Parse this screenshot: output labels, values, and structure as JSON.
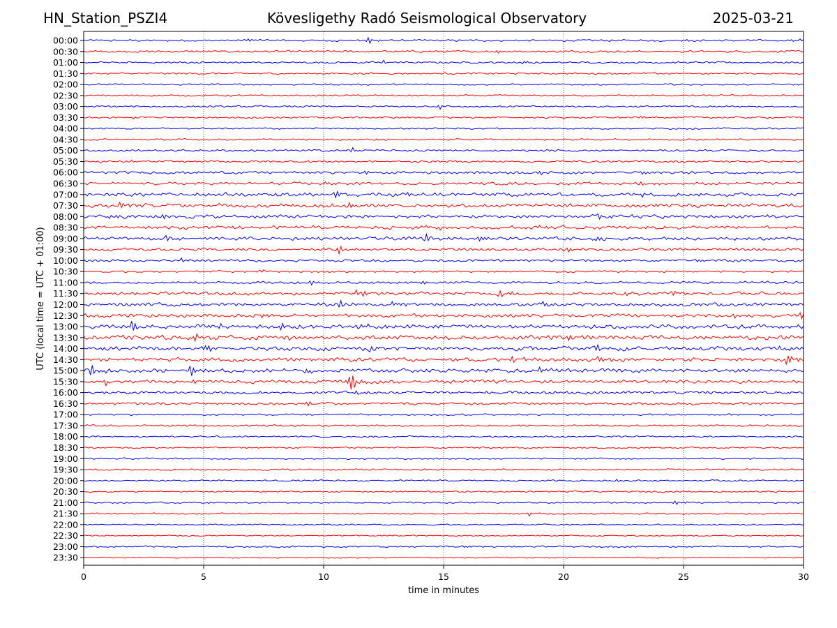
{
  "header": {
    "station": "HN_Station_PSZI4",
    "observatory": "Kövesligethy Radó Seismological Observatory",
    "date": "2025-03-21"
  },
  "chart_data": {
    "type": "line",
    "title": "Kövesligethy Radó Seismological Observatory",
    "xlabel": "time in minutes",
    "ylabel": "UTC (local time = UTC + 01:00)",
    "xlim": [
      0,
      30
    ],
    "xticks": [
      0,
      5,
      10,
      15,
      20,
      25,
      30
    ],
    "grid": "vertical dotted",
    "colors": {
      "even_rows": "#0000ff",
      "odd_rows": "#ff0000",
      "axes": "#000000",
      "grid": "#000000"
    },
    "rows": [
      {
        "label": "00:00",
        "activity": 0.25,
        "events": [
          {
            "t": 11.9,
            "amp": 0.7
          },
          {
            "t": 6.9,
            "amp": 0.4
          },
          {
            "t": 24.9,
            "amp": 0.4
          },
          {
            "t": 29.6,
            "amp": 0.5
          }
        ]
      },
      {
        "label": "00:30",
        "activity": 0.25,
        "events": [
          {
            "t": 17.3,
            "amp": 0.4
          }
        ]
      },
      {
        "label": "01:00",
        "activity": 0.22,
        "events": [
          {
            "t": 12.5,
            "amp": 0.35
          },
          {
            "t": 18.3,
            "amp": 0.35
          }
        ]
      },
      {
        "label": "01:30",
        "activity": 0.22,
        "events": []
      },
      {
        "label": "02:00",
        "activity": 0.2,
        "events": []
      },
      {
        "label": "02:30",
        "activity": 0.2,
        "events": []
      },
      {
        "label": "03:00",
        "activity": 0.22,
        "events": [
          {
            "t": 14.8,
            "amp": 0.5
          },
          {
            "t": 26.0,
            "amp": 0.3
          }
        ]
      },
      {
        "label": "03:30",
        "activity": 0.22,
        "events": [
          {
            "t": 1.8,
            "amp": 0.4
          },
          {
            "t": 23.2,
            "amp": 0.3
          }
        ]
      },
      {
        "label": "04:00",
        "activity": 0.2,
        "events": []
      },
      {
        "label": "04:30",
        "activity": 0.2,
        "events": [
          {
            "t": 12.2,
            "amp": 0.35
          }
        ]
      },
      {
        "label": "05:00",
        "activity": 0.25,
        "events": [
          {
            "t": 11.2,
            "amp": 0.45
          }
        ]
      },
      {
        "label": "05:30",
        "activity": 0.25,
        "events": [
          {
            "t": 2.0,
            "amp": 0.3
          }
        ]
      },
      {
        "label": "06:00",
        "activity": 0.32,
        "events": [
          {
            "t": 11.7,
            "amp": 0.45
          },
          {
            "t": 18.8,
            "amp": 0.5
          },
          {
            "t": 23.3,
            "amp": 0.45
          }
        ]
      },
      {
        "label": "06:30",
        "activity": 0.32,
        "events": [
          {
            "t": 10.1,
            "amp": 0.5
          },
          {
            "t": 23.0,
            "amp": 0.5
          }
        ]
      },
      {
        "label": "07:00",
        "activity": 0.45,
        "events": [
          {
            "t": 7.9,
            "amp": 0.7
          },
          {
            "t": 10.5,
            "amp": 0.8
          },
          {
            "t": 13.3,
            "amp": 0.6
          },
          {
            "t": 23.1,
            "amp": 0.6
          }
        ]
      },
      {
        "label": "07:30",
        "activity": 0.45,
        "events": [
          {
            "t": 1.5,
            "amp": 0.7
          },
          {
            "t": 11.1,
            "amp": 0.7
          },
          {
            "t": 23.7,
            "amp": 0.7
          }
        ]
      },
      {
        "label": "08:00",
        "activity": 0.42,
        "events": [
          {
            "t": 1.1,
            "amp": 0.8
          },
          {
            "t": 3.3,
            "amp": 0.6
          },
          {
            "t": 21.5,
            "amp": 0.55
          }
        ]
      },
      {
        "label": "08:30",
        "activity": 0.4,
        "events": [
          {
            "t": 6.0,
            "amp": 0.55
          },
          {
            "t": 14.5,
            "amp": 0.55
          },
          {
            "t": 18.9,
            "amp": 0.5
          }
        ]
      },
      {
        "label": "09:00",
        "activity": 0.4,
        "events": [
          {
            "t": 1.1,
            "amp": 0.7
          },
          {
            "t": 3.5,
            "amp": 0.65
          },
          {
            "t": 14.3,
            "amp": 0.75
          },
          {
            "t": 16.4,
            "amp": 0.85
          },
          {
            "t": 21.3,
            "amp": 0.55
          }
        ]
      },
      {
        "label": "09:30",
        "activity": 0.35,
        "events": [
          {
            "t": 10.6,
            "amp": 0.9
          },
          {
            "t": 20.2,
            "amp": 0.45
          }
        ]
      },
      {
        "label": "10:00",
        "activity": 0.3,
        "events": [
          {
            "t": 4.1,
            "amp": 0.55
          },
          {
            "t": 25.5,
            "amp": 0.5
          }
        ]
      },
      {
        "label": "10:30",
        "activity": 0.25,
        "events": [
          {
            "t": 7.2,
            "amp": 0.45
          }
        ]
      },
      {
        "label": "11:00",
        "activity": 0.3,
        "events": [
          {
            "t": 9.5,
            "amp": 0.5
          },
          {
            "t": 14.1,
            "amp": 0.5
          }
        ]
      },
      {
        "label": "11:30",
        "activity": 0.38,
        "events": [
          {
            "t": 11.4,
            "amp": 1.5
          },
          {
            "t": 17.4,
            "amp": 0.8
          },
          {
            "t": 22.6,
            "amp": 0.6
          },
          {
            "t": 24.6,
            "amp": 0.55
          }
        ]
      },
      {
        "label": "12:00",
        "activity": 0.42,
        "events": [
          {
            "t": 10.7,
            "amp": 0.7
          },
          {
            "t": 12.9,
            "amp": 0.6
          },
          {
            "t": 19.2,
            "amp": 0.8
          }
        ]
      },
      {
        "label": "12:30",
        "activity": 0.42,
        "events": [
          {
            "t": 7.4,
            "amp": 0.6
          },
          {
            "t": 27.1,
            "amp": 0.7
          },
          {
            "t": 29.8,
            "amp": 0.8
          }
        ]
      },
      {
        "label": "13:00",
        "activity": 0.5,
        "events": [
          {
            "t": 2.0,
            "amp": 1.1
          },
          {
            "t": 5.4,
            "amp": 1.0
          },
          {
            "t": 8.2,
            "amp": 0.9
          },
          {
            "t": 11.5,
            "amp": 1.0
          }
        ]
      },
      {
        "label": "13:30",
        "activity": 0.5,
        "events": [
          {
            "t": 4.6,
            "amp": 0.8
          },
          {
            "t": 8.4,
            "amp": 0.8
          },
          {
            "t": 20.0,
            "amp": 1.0
          }
        ]
      },
      {
        "label": "14:00",
        "activity": 0.48,
        "events": [
          {
            "t": 0.6,
            "amp": 0.6
          },
          {
            "t": 5.1,
            "amp": 0.8
          },
          {
            "t": 12.0,
            "amp": 0.9
          },
          {
            "t": 21.3,
            "amp": 0.9
          },
          {
            "t": 29.1,
            "amp": 0.6
          }
        ]
      },
      {
        "label": "14:30",
        "activity": 0.45,
        "events": [
          {
            "t": 17.8,
            "amp": 0.6
          },
          {
            "t": 21.5,
            "amp": 0.6
          },
          {
            "t": 29.3,
            "amp": 1.2
          }
        ]
      },
      {
        "label": "15:00",
        "activity": 0.45,
        "events": [
          {
            "t": 0.3,
            "amp": 1.2
          },
          {
            "t": 4.4,
            "amp": 1.1
          },
          {
            "t": 9.2,
            "amp": 0.9
          },
          {
            "t": 19.0,
            "amp": 0.55
          }
        ]
      },
      {
        "label": "15:30",
        "activity": 0.42,
        "events": [
          {
            "t": 0.8,
            "amp": 0.7
          },
          {
            "t": 4.7,
            "amp": 0.6
          },
          {
            "t": 11.1,
            "amp": 2.6
          }
        ]
      },
      {
        "label": "16:00",
        "activity": 0.35,
        "events": [
          {
            "t": 11.4,
            "amp": 0.65
          },
          {
            "t": 29.0,
            "amp": 0.5
          }
        ]
      },
      {
        "label": "16:30",
        "activity": 0.3,
        "events": [
          {
            "t": 9.2,
            "amp": 0.5
          }
        ]
      },
      {
        "label": "17:00",
        "activity": 0.22,
        "events": []
      },
      {
        "label": "17:30",
        "activity": 0.22,
        "events": []
      },
      {
        "label": "18:00",
        "activity": 0.2,
        "events": []
      },
      {
        "label": "18:30",
        "activity": 0.2,
        "events": []
      },
      {
        "label": "19:00",
        "activity": 0.2,
        "events": []
      },
      {
        "label": "19:30",
        "activity": 0.2,
        "events": []
      },
      {
        "label": "20:00",
        "activity": 0.18,
        "events": [
          {
            "t": 22.2,
            "amp": 0.3
          }
        ]
      },
      {
        "label": "20:30",
        "activity": 0.18,
        "events": []
      },
      {
        "label": "21:00",
        "activity": 0.18,
        "events": [
          {
            "t": 24.7,
            "amp": 0.55
          }
        ]
      },
      {
        "label": "21:30",
        "activity": 0.18,
        "events": [
          {
            "t": 18.6,
            "amp": 0.5
          }
        ]
      },
      {
        "label": "22:00",
        "activity": 0.16,
        "events": []
      },
      {
        "label": "22:30",
        "activity": 0.16,
        "events": []
      },
      {
        "label": "23:00",
        "activity": 0.2,
        "events": [
          {
            "t": 15.8,
            "amp": 0.45
          }
        ]
      },
      {
        "label": "23:30",
        "activity": 0.14,
        "events": []
      }
    ]
  }
}
